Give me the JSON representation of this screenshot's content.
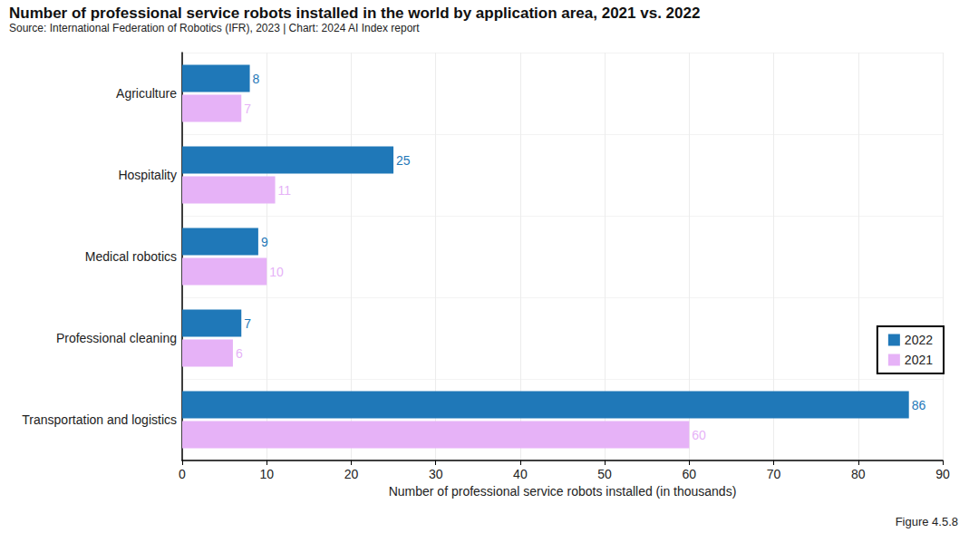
{
  "chart_data": {
    "type": "bar",
    "orientation": "horizontal",
    "title": "Number of professional service robots installed in the world by application area, 2021 vs. 2022",
    "subtitle": "Source: International Federation of Robotics (IFR), 2023 | Chart: 2024 AI Index report",
    "annotations": [
      "Figure 4.5.8"
    ],
    "x_label": "Number of professional service robots installed (in thousands)",
    "categories": [
      "Agriculture",
      "Hospitality",
      "Medical robotics",
      "Professional cleaning",
      "Transportation and logistics"
    ],
    "series": [
      {
        "name": "2022",
        "color": "#1f78b8",
        "values": [
          8,
          25,
          9,
          7,
          86
        ]
      },
      {
        "name": "2021",
        "color": "#e6b2f7",
        "values": [
          7,
          11,
          10,
          6,
          60
        ]
      }
    ],
    "xlim": [
      0,
      90
    ],
    "xticks": [
      0,
      10,
      20,
      30,
      40,
      50,
      60,
      70,
      80,
      90
    ],
    "grid": true,
    "legend": "lower right",
    "data_labels": true
  }
}
